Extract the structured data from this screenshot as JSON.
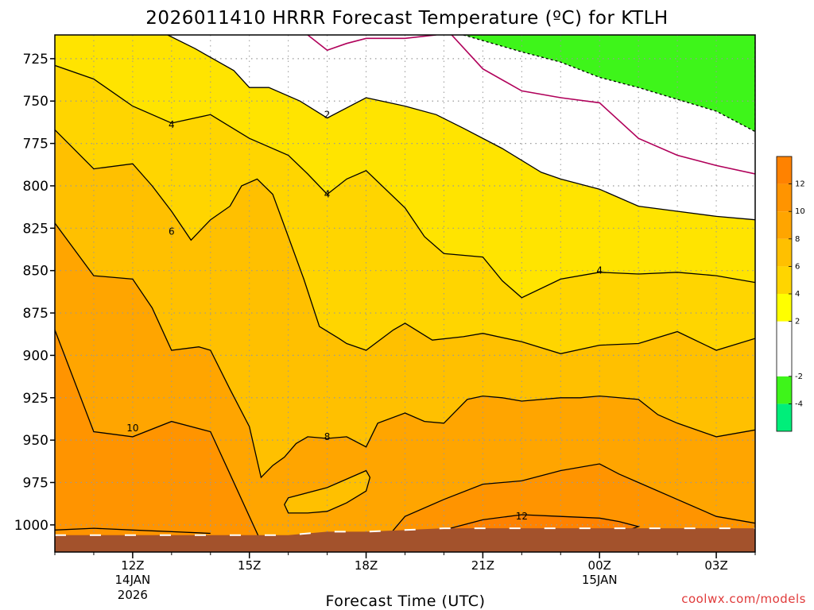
{
  "title": "2026011410 HRRR Forecast Temperature (ºC) for KTLH",
  "credit": "coolwx.com/models",
  "chart_data": {
    "type": "heatmap",
    "title": "2026011410 HRRR Forecast Temperature (ºC) for KTLH",
    "xlabel": "Forecast Time (UTC)",
    "ylabel": "",
    "x_hours_since_10z": {
      "start": 0,
      "end": 18
    },
    "y_pressure_hpa": {
      "top": 711,
      "bottom": 1016,
      "reversed": true
    },
    "x_ticks": [
      {
        "label": "12Z",
        "hour": 2,
        "sub1": "14JAN",
        "sub2": "2026"
      },
      {
        "label": "15Z",
        "hour": 5,
        "sub1": "",
        "sub2": ""
      },
      {
        "label": "18Z",
        "hour": 8,
        "sub1": "",
        "sub2": ""
      },
      {
        "label": "21Z",
        "hour": 11,
        "sub1": "",
        "sub2": ""
      },
      {
        "label": "00Z",
        "hour": 14,
        "sub1": "15JAN",
        "sub2": ""
      },
      {
        "label": "03Z",
        "hour": 17,
        "sub1": "",
        "sub2": ""
      }
    ],
    "y_ticks": [
      725,
      750,
      775,
      800,
      825,
      850,
      875,
      900,
      925,
      950,
      975,
      1000
    ],
    "grid": true,
    "colorbar": {
      "placement": "right",
      "levels": [
        -6,
        -4,
        -2,
        0,
        2,
        4,
        6,
        8,
        10,
        12,
        14
      ],
      "colors": [
        "#00ee7a",
        "#3ef51a",
        "#ffffff",
        "#ffffff",
        "#ffff00",
        "#ffd500",
        "#ffc000",
        "#ffa500",
        "#ff9400",
        "#ff8200"
      ],
      "tick_labels": [
        "-4",
        "-2",
        "2",
        "4",
        "6",
        "8",
        "10",
        "12"
      ]
    },
    "isotherms": [
      {
        "value": -2,
        "dashed": true,
        "points": [
          [
            10.5,
            711
          ],
          [
            12,
            721
          ],
          [
            13,
            727
          ],
          [
            14,
            736
          ],
          [
            15,
            742
          ],
          [
            16,
            749
          ],
          [
            17,
            756
          ],
          [
            18,
            768
          ],
          [
            18,
            711
          ]
        ]
      },
      {
        "value": 0,
        "dashed": false,
        "color": "#b0005a",
        "points": [
          [
            6.5,
            711
          ],
          [
            7,
            720
          ],
          [
            7.5,
            716
          ],
          [
            8,
            713
          ],
          [
            9,
            713
          ],
          [
            9.8,
            711
          ]
        ]
      },
      {
        "value": 0,
        "dashed": false,
        "color": "#b0005a",
        "points": [
          [
            10.2,
            711
          ],
          [
            11,
            731
          ],
          [
            12,
            744
          ],
          [
            13,
            748
          ],
          [
            14,
            751
          ],
          [
            15,
            772
          ],
          [
            16,
            782
          ],
          [
            17,
            788
          ],
          [
            18,
            793
          ]
        ]
      },
      {
        "value": 2,
        "dashed": false,
        "points": [
          [
            2.9,
            711
          ],
          [
            3.6,
            719
          ],
          [
            4.6,
            732
          ],
          [
            5,
            742
          ],
          [
            5.5,
            742
          ],
          [
            6.3,
            750
          ],
          [
            7,
            760
          ],
          [
            8,
            748
          ],
          [
            9,
            753
          ],
          [
            9.8,
            758
          ],
          [
            10.5,
            766
          ],
          [
            11.5,
            778
          ],
          [
            12.5,
            792
          ],
          [
            13,
            796
          ],
          [
            14,
            802
          ],
          [
            15,
            812
          ],
          [
            16,
            815
          ],
          [
            17,
            818
          ],
          [
            18,
            820
          ]
        ]
      },
      {
        "value": 4,
        "dashed": false,
        "points": [
          [
            0,
            729
          ],
          [
            1,
            737
          ],
          [
            2,
            753
          ],
          [
            3,
            763
          ],
          [
            4,
            758
          ],
          [
            4.5,
            765
          ],
          [
            5,
            772
          ],
          [
            6,
            782
          ],
          [
            6.5,
            793
          ],
          [
            7,
            805
          ],
          [
            7.5,
            796
          ],
          [
            8,
            791
          ],
          [
            9,
            813
          ],
          [
            9.5,
            830
          ],
          [
            10,
            840
          ],
          [
            11,
            842
          ],
          [
            11.5,
            856
          ],
          [
            12,
            866
          ],
          [
            13,
            855
          ],
          [
            14,
            851
          ],
          [
            15,
            852
          ],
          [
            16,
            851
          ],
          [
            17,
            853
          ],
          [
            18,
            857
          ]
        ]
      },
      {
        "value": 6,
        "dashed": false,
        "points": [
          [
            0,
            767
          ],
          [
            1,
            790
          ],
          [
            2,
            787
          ],
          [
            2.5,
            800
          ],
          [
            3,
            815
          ],
          [
            3.5,
            832
          ],
          [
            4,
            820
          ],
          [
            4.5,
            812
          ],
          [
            4.8,
            800
          ],
          [
            5.2,
            796
          ],
          [
            5.6,
            805
          ],
          [
            6,
            830
          ],
          [
            6.4,
            855
          ],
          [
            6.8,
            883
          ],
          [
            7.3,
            890
          ],
          [
            7.5,
            893
          ],
          [
            8,
            897
          ],
          [
            8.7,
            885
          ],
          [
            9,
            881
          ],
          [
            9.7,
            891
          ],
          [
            10.5,
            889
          ],
          [
            11,
            887
          ],
          [
            12,
            892
          ],
          [
            13,
            899
          ],
          [
            14,
            894
          ],
          [
            15,
            893
          ],
          [
            16,
            886
          ],
          [
            17,
            897
          ],
          [
            18,
            890
          ]
        ]
      },
      {
        "value": 8,
        "dashed": false,
        "points": [
          [
            0,
            822
          ],
          [
            1,
            853
          ],
          [
            2,
            855
          ],
          [
            2.5,
            872
          ],
          [
            3,
            897
          ],
          [
            3.7,
            895
          ],
          [
            4,
            897
          ],
          [
            4.5,
            920
          ],
          [
            5,
            942
          ],
          [
            5.3,
            972
          ],
          [
            5.6,
            965
          ],
          [
            5.9,
            960
          ],
          [
            6.2,
            952
          ],
          [
            6.5,
            948
          ],
          [
            7,
            949
          ],
          [
            7.5,
            948
          ],
          [
            8,
            954
          ],
          [
            8.3,
            940
          ],
          [
            9,
            934
          ],
          [
            9.5,
            939
          ],
          [
            10,
            940
          ],
          [
            10.6,
            926
          ],
          [
            11,
            924
          ],
          [
            11.5,
            925
          ],
          [
            12,
            927
          ],
          [
            13,
            925
          ],
          [
            13.5,
            925
          ],
          [
            14,
            924
          ],
          [
            15,
            926
          ],
          [
            15.5,
            935
          ],
          [
            16,
            940
          ],
          [
            17,
            948
          ],
          [
            18,
            944
          ]
        ]
      },
      {
        "value": 8,
        "dashed": false,
        "closed": true,
        "points": [
          [
            6,
            984
          ],
          [
            7,
            978
          ],
          [
            8,
            968
          ],
          [
            8.1,
            972
          ],
          [
            8,
            980
          ],
          [
            7.5,
            987
          ],
          [
            7,
            992
          ],
          [
            6.5,
            993
          ],
          [
            6,
            993
          ],
          [
            5.9,
            988
          ]
        ]
      },
      {
        "value": 10,
        "dashed": false,
        "points": [
          [
            0,
            885
          ],
          [
            1,
            945
          ],
          [
            2,
            948
          ],
          [
            3,
            939
          ],
          [
            4,
            945
          ],
          [
            4.5,
            970
          ],
          [
            5,
            995
          ],
          [
            5.4,
            1015
          ]
        ]
      },
      {
        "value": 10,
        "dashed": false,
        "points": [
          [
            8.3,
            1014
          ],
          [
            9,
            995
          ],
          [
            10,
            985
          ],
          [
            11,
            976
          ],
          [
            12,
            974
          ],
          [
            13,
            968
          ],
          [
            14,
            964
          ],
          [
            14.5,
            970
          ],
          [
            15,
            975
          ],
          [
            16,
            985
          ],
          [
            17,
            995
          ],
          [
            18,
            999
          ]
        ]
      },
      {
        "value": 12,
        "dashed": false,
        "closed": true,
        "points": [
          [
            10,
            1003
          ],
          [
            11,
            997
          ],
          [
            12,
            994
          ],
          [
            13,
            995
          ],
          [
            14,
            996
          ],
          [
            14.5,
            998
          ],
          [
            15,
            1001
          ],
          [
            14.5,
            1005
          ],
          [
            12,
            1005
          ],
          [
            10,
            1005
          ]
        ]
      },
      {
        "value": 12,
        "dashed": false,
        "points": [
          [
            0,
            1003
          ],
          [
            1,
            1002
          ],
          [
            2,
            1003
          ],
          [
            3,
            1004
          ],
          [
            4,
            1005
          ]
        ]
      }
    ],
    "contour_labels": [
      {
        "text": "2",
        "hour": 7,
        "p": 758
      },
      {
        "text": "4",
        "hour": 3,
        "p": 764
      },
      {
        "text": "4",
        "hour": 7,
        "p": 805
      },
      {
        "text": "4",
        "hour": 14,
        "p": 850
      },
      {
        "text": "6",
        "hour": 3,
        "p": 827
      },
      {
        "text": "8",
        "hour": 7,
        "p": 948
      },
      {
        "text": "10",
        "hour": 2,
        "p": 943
      },
      {
        "text": "12",
        "hour": 12,
        "p": 995
      }
    ],
    "surface_pressure": [
      [
        0,
        1006
      ],
      [
        5.5,
        1006
      ],
      [
        6,
        1006
      ],
      [
        7,
        1004
      ],
      [
        8,
        1004
      ],
      [
        9,
        1003
      ],
      [
        10,
        1002
      ],
      [
        11,
        1002
      ],
      [
        12,
        1002
      ],
      [
        13,
        1002
      ],
      [
        14,
        1002
      ],
      [
        15,
        1002
      ],
      [
        16,
        1002
      ],
      [
        17,
        1002
      ],
      [
        18,
        1002
      ]
    ],
    "colors": {
      "ground": "#a3522c",
      "grid": "#999999",
      "frame": "#000000"
    }
  },
  "fills": {
    "base": "#ffe400"
  }
}
